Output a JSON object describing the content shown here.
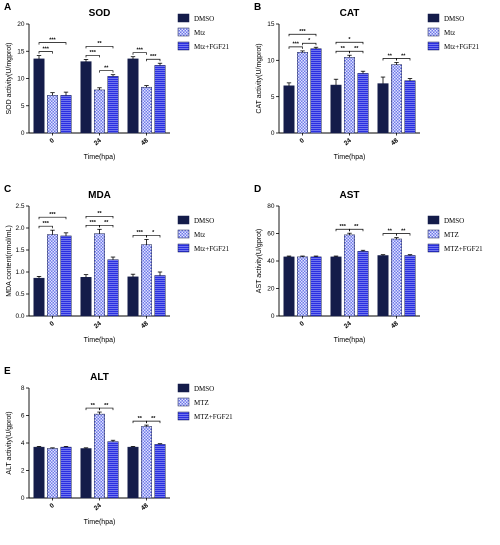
{
  "colors": {
    "dmso": "#141c4a",
    "mtz_bg": "#6f78e8",
    "mtz_fg": "#dfe3ff",
    "fgf": "#2a2fe0",
    "axis": "#000000"
  },
  "chart_data": [
    {
      "letter": "A",
      "title": "SOD",
      "type": "bar",
      "categories": [
        "0",
        "24",
        "48"
      ],
      "xlabel": "Time(hpa)",
      "ylabel": "SOD activity(U/mgprot)",
      "ylim": [
        0,
        20
      ],
      "yticks": [
        "0",
        "5",
        "10",
        "15",
        "20"
      ],
      "legend": [
        "DMSO",
        "Mtz",
        "Mtz+FGF21"
      ],
      "series": [
        {
          "name": "DMSO",
          "values": [
            13.6,
            13.1,
            13.6
          ],
          "err": [
            0.6,
            0.4,
            0.4
          ]
        },
        {
          "name": "Mtz",
          "values": [
            6.9,
            7.9,
            8.4
          ],
          "err": [
            0.5,
            0.4,
            0.3
          ]
        },
        {
          "name": "Mtz+FGF21",
          "values": [
            6.9,
            10.4,
            12.4
          ],
          "err": [
            0.6,
            0.3,
            0.4
          ]
        }
      ],
      "sig": [
        {
          "g": 0,
          "a": 0,
          "b": 1,
          "label": "***",
          "lvl": 1
        },
        {
          "g": 0,
          "a": 0,
          "b": 2,
          "label": "***",
          "lvl": 2
        },
        {
          "g": 1,
          "a": 0,
          "b": 1,
          "label": "***",
          "lvl": 1
        },
        {
          "g": 1,
          "a": 1,
          "b": 2,
          "label": "**",
          "lvl": 1
        },
        {
          "g": 1,
          "a": 0,
          "b": 2,
          "label": "**",
          "lvl": 2
        },
        {
          "g": 2,
          "a": 0,
          "b": 1,
          "label": "***",
          "lvl": 1
        },
        {
          "g": 2,
          "a": 1,
          "b": 2,
          "label": "***",
          "lvl": 1
        }
      ]
    },
    {
      "letter": "B",
      "title": "CAT",
      "type": "bar",
      "categories": [
        "0",
        "24",
        "48"
      ],
      "xlabel": "Time(hpa)",
      "ylabel": "CAT activity(U/mgprot)",
      "ylim": [
        0,
        15
      ],
      "yticks": [
        "0",
        "5",
        "10",
        "15"
      ],
      "legend": [
        "DMSO",
        "Mtz",
        "Mtz+FGF21"
      ],
      "series": [
        {
          "name": "DMSO",
          "values": [
            6.5,
            6.6,
            6.8
          ],
          "err": [
            0.4,
            0.8,
            0.9
          ]
        },
        {
          "name": "Mtz",
          "values": [
            11.1,
            10.4,
            9.4
          ],
          "err": [
            0.2,
            0.3,
            0.3
          ]
        },
        {
          "name": "Mtz+FGF21",
          "values": [
            11.6,
            8.2,
            7.2
          ],
          "err": [
            0.2,
            0.3,
            0.3
          ]
        }
      ],
      "sig": [
        {
          "g": 0,
          "a": 0,
          "b": 1,
          "label": "***",
          "lvl": 1
        },
        {
          "g": 0,
          "a": 1,
          "b": 2,
          "label": "*",
          "lvl": 1
        },
        {
          "g": 0,
          "a": 0,
          "b": 2,
          "label": "***",
          "lvl": 2
        },
        {
          "g": 1,
          "a": 0,
          "b": 1,
          "label": "**",
          "lvl": 1
        },
        {
          "g": 1,
          "a": 1,
          "b": 2,
          "label": "**",
          "lvl": 1
        },
        {
          "g": 1,
          "a": 0,
          "b": 2,
          "label": "*",
          "lvl": 2
        },
        {
          "g": 2,
          "a": 0,
          "b": 1,
          "label": "**",
          "lvl": 1
        },
        {
          "g": 2,
          "a": 1,
          "b": 2,
          "label": "**",
          "lvl": 1
        }
      ]
    },
    {
      "letter": "C",
      "title": "MDA",
      "type": "bar",
      "categories": [
        "0",
        "24",
        "48"
      ],
      "xlabel": "Time(hpa)",
      "ylabel": "MDA content(nmol/mL)",
      "ylim": [
        0,
        2.5
      ],
      "yticks": [
        "0.0",
        "0.5",
        "1.0",
        "1.5",
        "2.0",
        "2.5"
      ],
      "legend": [
        "DMSO",
        "Mtz",
        "Mtz+FGF21"
      ],
      "series": [
        {
          "name": "DMSO",
          "values": [
            0.86,
            0.88,
            0.89
          ],
          "err": [
            0.04,
            0.06,
            0.06
          ]
        },
        {
          "name": "Mtz",
          "values": [
            1.85,
            1.87,
            1.62
          ],
          "err": [
            0.1,
            0.1,
            0.12
          ]
        },
        {
          "name": "Mtz+FGF21",
          "values": [
            1.82,
            1.28,
            0.92
          ],
          "err": [
            0.07,
            0.06,
            0.08
          ]
        }
      ],
      "sig": [
        {
          "g": 0,
          "a": 0,
          "b": 1,
          "label": "***",
          "lvl": 1
        },
        {
          "g": 0,
          "a": 0,
          "b": 2,
          "label": "***",
          "lvl": 2
        },
        {
          "g": 1,
          "a": 0,
          "b": 1,
          "label": "***",
          "lvl": 1
        },
        {
          "g": 1,
          "a": 1,
          "b": 2,
          "label": "**",
          "lvl": 1
        },
        {
          "g": 1,
          "a": 0,
          "b": 2,
          "label": "**",
          "lvl": 2
        },
        {
          "g": 2,
          "a": 0,
          "b": 1,
          "label": "***",
          "lvl": 1
        },
        {
          "g": 2,
          "a": 1,
          "b": 2,
          "label": "*",
          "lvl": 1
        }
      ]
    },
    {
      "letter": "D",
      "title": "AST",
      "type": "bar",
      "categories": [
        "0",
        "24",
        "48"
      ],
      "xlabel": "Time(hpa)",
      "ylabel": "AST activity(U/gprot)",
      "ylim": [
        0,
        80
      ],
      "yticks": [
        "0",
        "20",
        "40",
        "60",
        "80"
      ],
      "legend": [
        "DMSO",
        "MTZ",
        "MTZ+FGF21"
      ],
      "series": [
        {
          "name": "DMSO",
          "values": [
            43,
            43,
            44
          ],
          "err": [
            0.6,
            0.6,
            0.6
          ]
        },
        {
          "name": "MTZ",
          "values": [
            43,
            59,
            56
          ],
          "err": [
            0.6,
            1.2,
            1.0
          ]
        },
        {
          "name": "MTZ+FGF21",
          "values": [
            43,
            47,
            44
          ],
          "err": [
            0.6,
            0.8,
            0.6
          ]
        }
      ],
      "sig": [
        {
          "g": 1,
          "a": 0,
          "b": 1,
          "label": "***",
          "lvl": 1
        },
        {
          "g": 1,
          "a": 1,
          "b": 2,
          "label": "**",
          "lvl": 1
        },
        {
          "g": 2,
          "a": 0,
          "b": 1,
          "label": "**",
          "lvl": 1
        },
        {
          "g": 2,
          "a": 1,
          "b": 2,
          "label": "**",
          "lvl": 1
        }
      ]
    },
    {
      "letter": "E",
      "title": "ALT",
      "type": "bar",
      "categories": [
        "0",
        "24",
        "48"
      ],
      "xlabel": "Time(hpa)",
      "ylabel": "ALT activity(U/gprot)",
      "ylim": [
        0,
        8
      ],
      "yticks": [
        "0",
        "2",
        "4",
        "6",
        "8"
      ],
      "legend": [
        "DMSO",
        "MTZ",
        "MTZ+FGF21"
      ],
      "series": [
        {
          "name": "DMSO",
          "values": [
            3.7,
            3.6,
            3.7
          ],
          "err": [
            0.05,
            0.05,
            0.05
          ]
        },
        {
          "name": "MTZ",
          "values": [
            3.6,
            6.1,
            5.2
          ],
          "err": [
            0.05,
            0.15,
            0.1
          ]
        },
        {
          "name": "MTZ+FGF21",
          "values": [
            3.7,
            4.1,
            3.9
          ],
          "err": [
            0.05,
            0.1,
            0.05
          ]
        }
      ],
      "sig": [
        {
          "g": 1,
          "a": 0,
          "b": 1,
          "label": "**",
          "lvl": 1
        },
        {
          "g": 1,
          "a": 1,
          "b": 2,
          "label": "**",
          "lvl": 1
        },
        {
          "g": 2,
          "a": 0,
          "b": 1,
          "label": "**",
          "lvl": 1
        },
        {
          "g": 2,
          "a": 1,
          "b": 2,
          "label": "**",
          "lvl": 1
        }
      ]
    }
  ]
}
